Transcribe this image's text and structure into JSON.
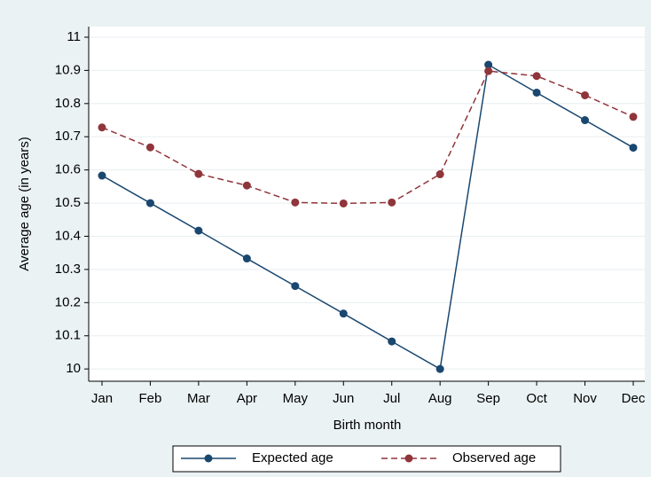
{
  "chart_data": {
    "type": "line",
    "x_label": "Birth month",
    "y_label": "Average age (in years)",
    "categories": [
      "Jan",
      "Feb",
      "Mar",
      "Apr",
      "May",
      "Jun",
      "Jul",
      "Aug",
      "Sep",
      "Oct",
      "Nov",
      "Dec"
    ],
    "series": [
      {
        "name": "Expected age",
        "color": "#1a476f",
        "dash": false,
        "values": [
          10.583,
          10.5,
          10.417,
          10.333,
          10.25,
          10.167,
          10.083,
          10.0,
          10.917,
          10.833,
          10.75,
          10.667
        ]
      },
      {
        "name": "Observed age",
        "color": "#90353b",
        "dash": true,
        "values": [
          10.728,
          10.668,
          10.588,
          10.553,
          10.502,
          10.499,
          10.502,
          10.587,
          10.898,
          10.883,
          10.825,
          10.76
        ]
      }
    ],
    "ylim": [
      9.963,
      11.032
    ],
    "yticks": [
      10,
      10.1,
      10.2,
      10.3,
      10.4,
      10.5,
      10.6,
      10.7,
      10.8,
      10.9,
      11
    ],
    "grid": true,
    "legend": "bottom"
  }
}
